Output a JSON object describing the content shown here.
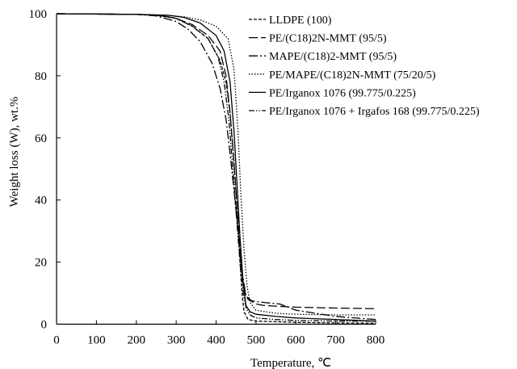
{
  "chart_data": {
    "type": "line",
    "xlabel": "Temperature, ℃",
    "ylabel": "Weight loss (W), wt.%",
    "xlim": [
      0,
      800
    ],
    "ylim": [
      0,
      100
    ],
    "xticks": [
      "0",
      "100",
      "200",
      "300",
      "400",
      "500",
      "600",
      "700",
      "800"
    ],
    "yticks": [
      "0",
      "20",
      "40",
      "60",
      "80",
      "100"
    ],
    "grid": false,
    "legend_position": "top-right",
    "series": [
      {
        "name": "LLDPE (100)",
        "dash": "short-dash",
        "x": [
          0,
          200,
          250,
          300,
          340,
          380,
          410,
          425,
          435,
          445,
          455,
          460,
          465,
          470,
          480,
          500,
          550,
          600,
          700,
          800
        ],
        "y": [
          100,
          99.8,
          99.5,
          98.5,
          96,
          92,
          85,
          78,
          68,
          52,
          32,
          20,
          10,
          4,
          1.5,
          1,
          0.8,
          0.6,
          0.4,
          0.3
        ]
      },
      {
        "name": "PE/(C18)2N-MMT (95/5)",
        "dash": "long-dash",
        "x": [
          0,
          200,
          260,
          300,
          340,
          380,
          410,
          425,
          435,
          445,
          455,
          462,
          470,
          480,
          500,
          520,
          600,
          700,
          800
        ],
        "y": [
          100,
          99.8,
          99.5,
          98.5,
          96.5,
          93,
          88,
          80,
          68,
          52,
          33,
          20,
          11,
          8,
          6.5,
          6,
          5.5,
          5.2,
          5
        ]
      },
      {
        "name": "MAPE/(C18)2-MMT (95/5)",
        "dash": "dash-dot",
        "x": [
          0,
          200,
          250,
          300,
          330,
          360,
          390,
          410,
          425,
          435,
          445,
          455,
          465,
          475,
          490,
          520,
          560,
          600,
          700,
          800
        ],
        "y": [
          100,
          99.8,
          99.3,
          97.5,
          95,
          91,
          84,
          76,
          66,
          55,
          43,
          30,
          17,
          9,
          7.5,
          7,
          6.5,
          4.5,
          2.5,
          1.5
        ]
      },
      {
        "name": "PE/MAPE/(C18)2N-MMT (75/20/5)",
        "dash": "dotted",
        "x": [
          0,
          200,
          280,
          320,
          360,
          400,
          430,
          445,
          455,
          462,
          470,
          478,
          485,
          500,
          550,
          600,
          700,
          800
        ],
        "y": [
          100,
          99.8,
          99.5,
          99,
          98,
          96,
          92,
          82,
          62,
          42,
          24,
          12,
          7,
          4.5,
          3.5,
          3.2,
          3,
          3
        ]
      },
      {
        "name": "PE/Irganox 1076 (99.775/0.225)",
        "dash": "solid",
        "x": [
          0,
          200,
          280,
          320,
          360,
          400,
          420,
          435,
          445,
          452,
          460,
          468,
          475,
          485,
          500,
          550,
          600,
          700,
          800
        ],
        "y": [
          100,
          99.8,
          99.5,
          98.8,
          97,
          93,
          88,
          78,
          62,
          46,
          28,
          13,
          6,
          4,
          3.2,
          2.5,
          2,
          1.5,
          1
        ]
      },
      {
        "name": "PE/Irganox 1076 + Irgafos 168 (99.775/0.225)",
        "dash": "dash-dot-dot",
        "x": [
          0,
          200,
          260,
          300,
          340,
          380,
          405,
          420,
          432,
          442,
          452,
          460,
          468,
          476,
          485,
          500,
          550,
          600,
          700,
          800
        ],
        "y": [
          100,
          99.8,
          99.4,
          98.5,
          96,
          92,
          86,
          78,
          66,
          50,
          33,
          20,
          10,
          5,
          3,
          2,
          1.5,
          1.2,
          1,
          1
        ]
      }
    ]
  }
}
